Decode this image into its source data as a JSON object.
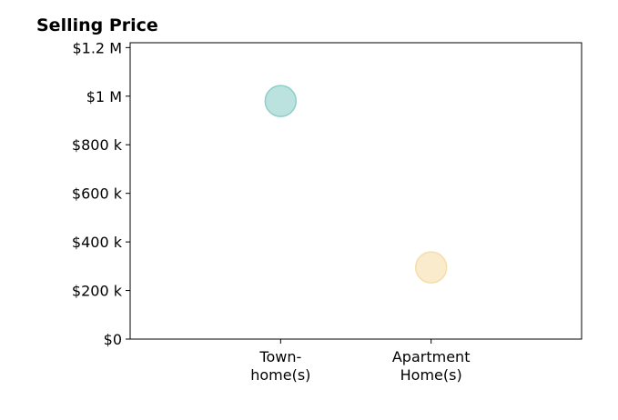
{
  "chart_data": {
    "type": "scatter",
    "title": "Selling Price",
    "xlabel": "",
    "ylabel": "",
    "categories": [
      [
        "Town-",
        "home(s)"
      ],
      [
        "Apartment",
        "Home(s)"
      ]
    ],
    "x_positions": [
      1,
      2
    ],
    "xlim": [
      0,
      3
    ],
    "ylim": [
      0,
      1220000
    ],
    "yticks": [
      0,
      200000,
      400000,
      600000,
      800000,
      1000000,
      1200000
    ],
    "ytick_labels": [
      "$0",
      "$200 k",
      "$400 k",
      "$600 k",
      "$800 k",
      "$1 M",
      "$1.2 M"
    ],
    "points": [
      {
        "category": "Town-home(s)",
        "x": 1,
        "y": 980000,
        "color": "#8ecfc9"
      },
      {
        "category": "Apartment Home(s)",
        "x": 2,
        "y": 295000,
        "color": "#f6deaa"
      }
    ],
    "grid": false,
    "legend": "none"
  }
}
